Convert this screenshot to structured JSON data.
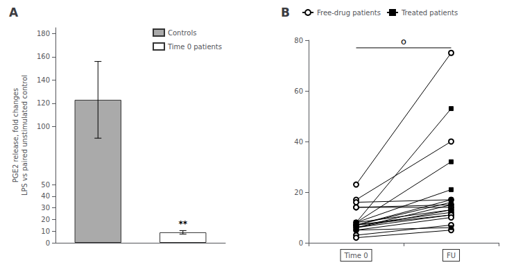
{
  "chart_data": [
    {
      "type": "bar",
      "title": "A",
      "categories": [
        "Controls",
        "Time 0 patients"
      ],
      "values": [
        123,
        9
      ],
      "errors": [
        33,
        1.5
      ],
      "colors": [
        "#aaaaaa",
        "#ffffff"
      ],
      "ylabel": "PGE2 release, fold changes\nLPS vs paired unstimulated control",
      "ylim": [
        0,
        185
      ],
      "yticks": [
        0,
        10,
        20,
        30,
        40,
        50,
        100,
        120,
        140,
        160,
        180
      ],
      "grid": false,
      "legend": "upper right",
      "tick_labels": "y",
      "annotations": [
        {
          "text": "**",
          "x": "Time 0 patients",
          "y": 11.5
        }
      ]
    },
    {
      "type": "line",
      "title": "B",
      "categories": [
        "Time 0",
        "FU"
      ],
      "series": [
        {
          "name": "Free-drug patients",
          "color": "#000000",
          "marker": "circle",
          "values": [
            [
              23,
              75
            ],
            [
              17,
              40
            ],
            [
              16,
              17
            ],
            [
              14,
              15
            ],
            [
              14,
              14
            ],
            [
              8,
              13
            ],
            [
              7,
              12
            ],
            [
              7,
              11
            ],
            [
              6,
              11
            ],
            [
              5,
              10
            ],
            [
              3,
              7
            ],
            [
              2,
              5
            ]
          ]
        },
        {
          "name": "Treated patients",
          "color": "#000000",
          "marker": "square",
          "values": [
            [
              8,
              53
            ],
            [
              8,
              32
            ],
            [
              8,
              21
            ],
            [
              7,
              17
            ],
            [
              7,
              16
            ],
            [
              6,
              15
            ],
            [
              6,
              13
            ],
            [
              5,
              6
            ]
          ]
        }
      ],
      "ylim": [
        0,
        80
      ],
      "yticks": [
        0,
        20,
        40,
        60,
        80
      ],
      "grid": false,
      "legend": "top",
      "annotations": [
        {
          "text": "o",
          "x": [
            "Time 0",
            "FU"
          ],
          "y": 77
        }
      ]
    }
  ]
}
